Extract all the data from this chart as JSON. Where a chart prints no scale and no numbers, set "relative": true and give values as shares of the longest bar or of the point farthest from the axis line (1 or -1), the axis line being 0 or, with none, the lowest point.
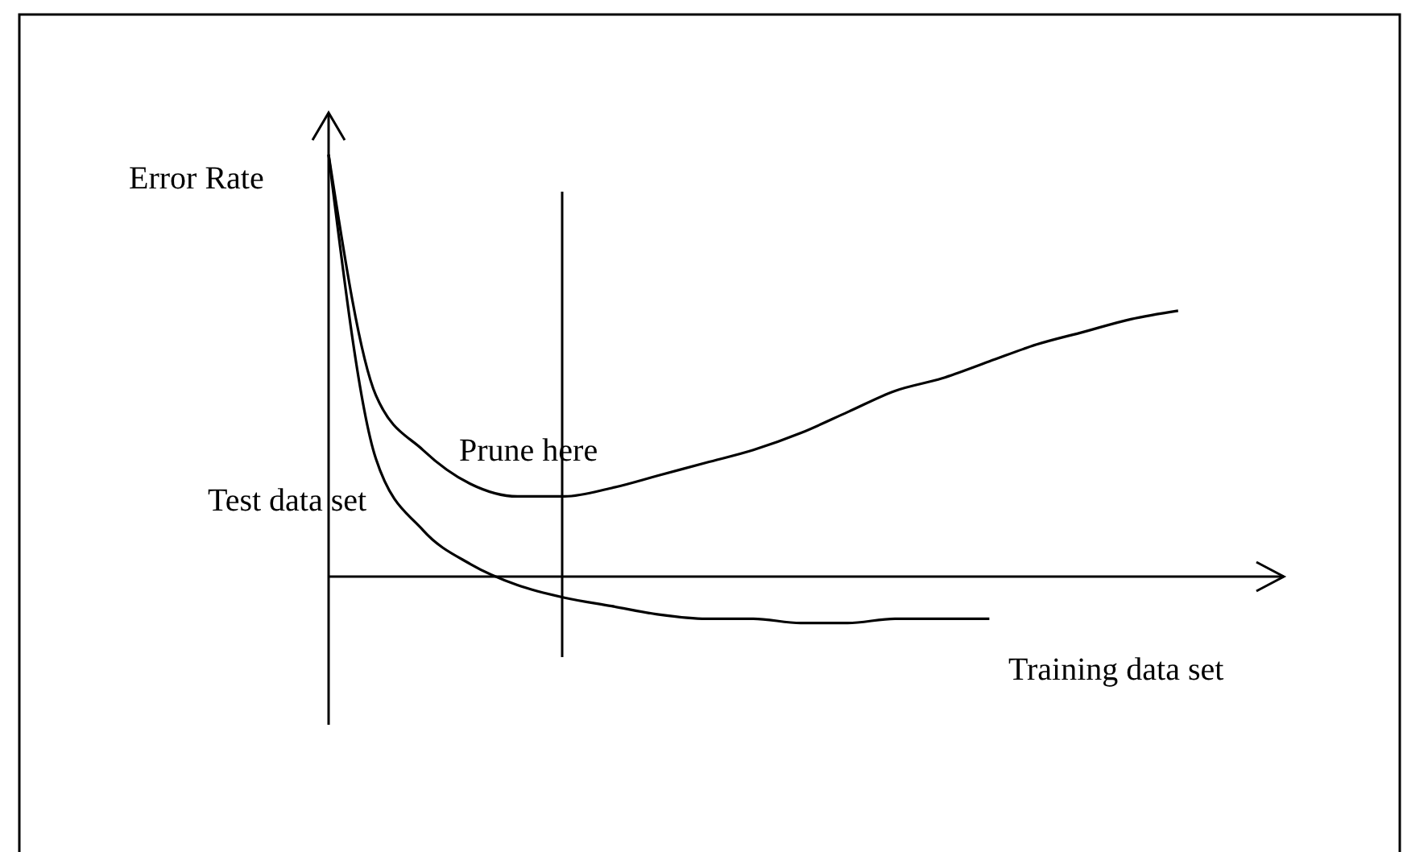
{
  "chart_data": {
    "type": "line",
    "relative": true,
    "ylabel": "Error Rate",
    "xlabel": "Training data set",
    "categories": [
      null,
      null,
      null,
      null,
      null,
      null,
      null,
      null,
      null,
      null,
      null,
      null,
      null,
      null,
      null,
      null,
      null,
      null,
      null,
      null,
      null
    ],
    "series": [
      {
        "color": "#000000",
        "values": [
          1.0,
          0.43,
          0.3,
          0.22,
          0.19,
          0.19,
          0.21,
          0.24,
          0.27,
          0.3,
          0.34,
          0.39,
          0.44,
          0.47,
          0.51,
          0.55,
          0.58,
          0.61,
          0.63,
          null,
          null
        ]
      },
      {
        "color": "#000000",
        "values": [
          1.0,
          0.28,
          0.11,
          0.03,
          -0.02,
          -0.05,
          -0.07,
          -0.09,
          -0.1,
          -0.1,
          -0.11,
          -0.11,
          -0.1,
          -0.1,
          -0.1,
          null,
          null,
          null,
          null,
          null,
          null
        ]
      }
    ],
    "annotations": [
      "Prune here",
      "Test data set"
    ],
    "marker": "none",
    "line_style": "solid",
    "grid": false
  }
}
